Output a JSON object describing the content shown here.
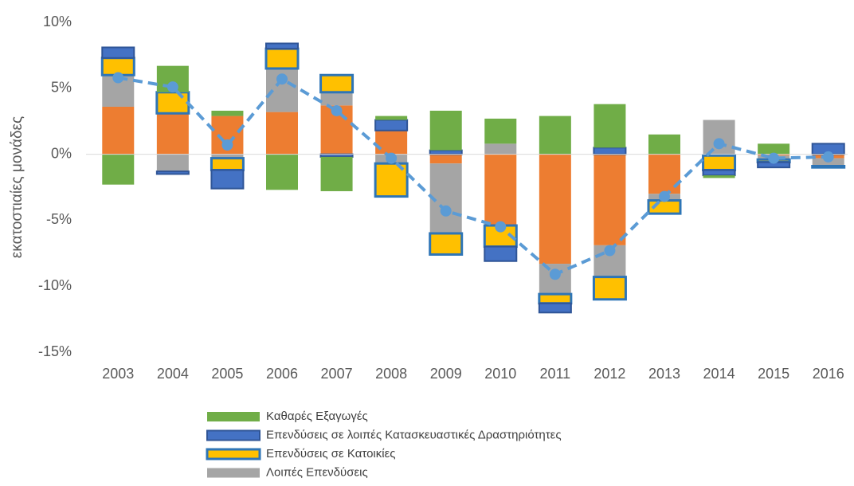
{
  "chart_data": {
    "type": "bar",
    "y_label": "εκατοστιαίες μονάδες",
    "categories": [
      "2003",
      "2004",
      "2005",
      "2006",
      "2007",
      "2008",
      "2009",
      "2010",
      "2011",
      "2012",
      "2013",
      "2014",
      "2015",
      "2016"
    ],
    "ylim": [
      -15,
      10
    ],
    "yticks": [
      {
        "value": 10,
        "label": "10%"
      },
      {
        "value": 5,
        "label": "5%"
      },
      {
        "value": 0,
        "label": "0%"
      },
      {
        "value": -5,
        "label": "-5%"
      },
      {
        "value": -10,
        "label": "-10%"
      },
      {
        "value": -15,
        "label": "-15%"
      }
    ],
    "series": [
      {
        "color": "#ed7d31",
        "values": [
          3.6,
          3.1,
          2.9,
          3.2,
          3.7,
          1.8,
          -0.7,
          -5.4,
          -8.3,
          -6.9,
          -3.0,
          -0.1,
          -0.1,
          -0.3
        ]
      },
      {
        "name": "Λοιπές Επενδύσεις",
        "color": "#a5a5a5",
        "values": [
          2.4,
          -1.3,
          -0.3,
          3.3,
          1.0,
          -0.7,
          -5.3,
          0.8,
          -2.3,
          -2.4,
          -0.5,
          2.6,
          -0.3,
          -0.6
        ]
      },
      {
        "name": "Επενδύσεις σε Κατοικίες",
        "color": "#ffc000",
        "stroke": "#2e75b6",
        "values": [
          1.3,
          1.6,
          -0.9,
          1.5,
          1.3,
          -2.5,
          -1.6,
          -1.6,
          -0.7,
          -1.7,
          -1.0,
          -1.1,
          -0.2,
          -0.1
        ]
      },
      {
        "name": "Επενδύσεις σε λοιπές Κατασκευαστικές Δραστηριότητες",
        "color": "#4472c4",
        "stroke": "#2f5597",
        "values": [
          0.8,
          -0.2,
          -1.4,
          0.4,
          -0.2,
          0.8,
          0.3,
          -1.1,
          -0.7,
          0.5,
          0,
          -0.4,
          -0.4,
          0.8
        ]
      },
      {
        "name": "Καθαρές Εξαγωγές",
        "color": "#70ad47",
        "values": [
          -2.3,
          2.0,
          0.4,
          -2.7,
          -2.6,
          0.3,
          3.0,
          1.9,
          2.9,
          3.3,
          1.5,
          -0.2,
          0.8,
          0
        ]
      }
    ],
    "line": {
      "color": "#5b9bd5",
      "values": [
        5.8,
        5.1,
        0.7,
        5.7,
        3.3,
        -0.3,
        -4.3,
        -5.5,
        -9.1,
        -7.3,
        -3.2,
        0.8,
        -0.3,
        -0.2
      ]
    },
    "legend_order": [
      4,
      3,
      2,
      1
    ]
  }
}
